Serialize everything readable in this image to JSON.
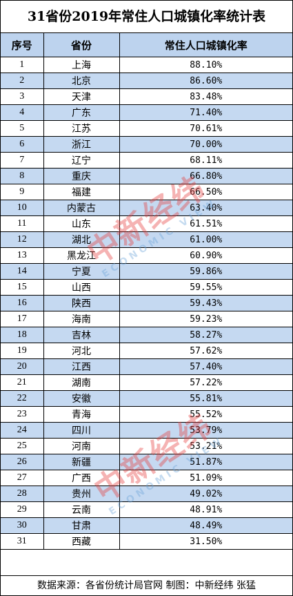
{
  "title": "31省份2019年常住人口城镇化率统计表",
  "columns": [
    "序号",
    "省份",
    "常住人口城镇化率"
  ],
  "rows": [
    {
      "idx": "1",
      "province": "上海",
      "rate": "88.10%"
    },
    {
      "idx": "2",
      "province": "北京",
      "rate": "86.60%"
    },
    {
      "idx": "3",
      "province": "天津",
      "rate": "83.48%"
    },
    {
      "idx": "4",
      "province": "广东",
      "rate": "71.40%"
    },
    {
      "idx": "5",
      "province": "江苏",
      "rate": "70.61%"
    },
    {
      "idx": "6",
      "province": "浙江",
      "rate": "70.00%"
    },
    {
      "idx": "7",
      "province": "辽宁",
      "rate": "68.11%"
    },
    {
      "idx": "8",
      "province": "重庆",
      "rate": "66.80%"
    },
    {
      "idx": "9",
      "province": "福建",
      "rate": "66.50%"
    },
    {
      "idx": "10",
      "province": "内蒙古",
      "rate": "63.40%"
    },
    {
      "idx": "11",
      "province": "山东",
      "rate": "61.51%"
    },
    {
      "idx": "12",
      "province": "湖北",
      "rate": "61.00%"
    },
    {
      "idx": "13",
      "province": "黑龙江",
      "rate": "60.90%"
    },
    {
      "idx": "14",
      "province": "宁夏",
      "rate": "59.86%"
    },
    {
      "idx": "15",
      "province": "山西",
      "rate": "59.55%"
    },
    {
      "idx": "16",
      "province": "陕西",
      "rate": "59.43%"
    },
    {
      "idx": "17",
      "province": "海南",
      "rate": "59.23%"
    },
    {
      "idx": "18",
      "province": "吉林",
      "rate": "58.27%"
    },
    {
      "idx": "19",
      "province": "河北",
      "rate": "57.62%"
    },
    {
      "idx": "20",
      "province": "江西",
      "rate": "57.40%"
    },
    {
      "idx": "21",
      "province": "湖南",
      "rate": "57.22%"
    },
    {
      "idx": "22",
      "province": "安徽",
      "rate": "55.81%"
    },
    {
      "idx": "23",
      "province": "青海",
      "rate": "55.52%"
    },
    {
      "idx": "24",
      "province": "四川",
      "rate": "53.79%"
    },
    {
      "idx": "25",
      "province": "河南",
      "rate": "53.21%"
    },
    {
      "idx": "26",
      "province": "新疆",
      "rate": "51.87%"
    },
    {
      "idx": "27",
      "province": "广西",
      "rate": "51.09%"
    },
    {
      "idx": "28",
      "province": "贵州",
      "rate": "49.02%"
    },
    {
      "idx": "29",
      "province": "云南",
      "rate": "48.91%"
    },
    {
      "idx": "30",
      "province": "甘肃",
      "rate": "48.49%"
    },
    {
      "idx": "31",
      "province": "西藏",
      "rate": "31.50%"
    }
  ],
  "footer": "数据来源：各省份统计局官网  制图：中新经纬 张猛",
  "watermark": {
    "main": "中新经纬",
    "sub": "ECONOMIC VIEW",
    "main_color": "#e63a3a",
    "sub_color": "#6aa3d8"
  },
  "colors": {
    "header_bg": "#bdd3ee",
    "alt_row_bg": "#c5d9f1"
  }
}
